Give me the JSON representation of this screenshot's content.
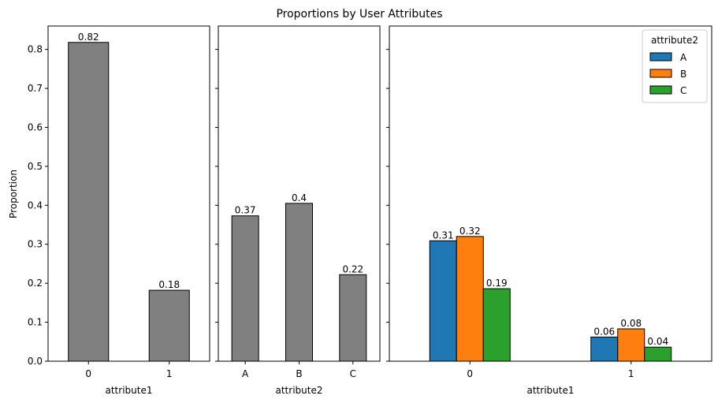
{
  "chart_data": {
    "type": "bar",
    "title": "Proportions by User Attributes",
    "ylabel": "Proportion",
    "ylim": [
      0,
      0.86
    ],
    "yticks": [
      0.0,
      0.1,
      0.2,
      0.3,
      0.4,
      0.5,
      0.6,
      0.7,
      0.8
    ],
    "ytick_labels": [
      "0.0",
      "0.1",
      "0.2",
      "0.3",
      "0.4",
      "0.5",
      "0.6",
      "0.7",
      "0.8"
    ],
    "grid": false,
    "shared_y": true,
    "bar_edge_color": "#000000",
    "subplots": [
      {
        "xlabel": "attribute1",
        "categories": [
          "0",
          "1"
        ],
        "values": [
          0.818,
          0.182
        ],
        "value_labels": [
          "0.82",
          "0.18"
        ],
        "color": "#808080"
      },
      {
        "xlabel": "attribute2",
        "categories": [
          "A",
          "B",
          "C"
        ],
        "values": [
          0.373,
          0.405,
          0.222
        ],
        "value_labels": [
          "0.37",
          "0.4",
          "0.22"
        ],
        "color": "#808080"
      },
      {
        "xlabel": "attribute1",
        "categories": [
          "0",
          "1"
        ],
        "legend": {
          "title": "attribute2",
          "placement": "top-right"
        },
        "series": [
          {
            "name": "A",
            "color": "#1f77b4",
            "values": [
              0.309,
              0.062
            ],
            "value_labels": [
              "0.31",
              "0.06"
            ]
          },
          {
            "name": "B",
            "color": "#ff7f0e",
            "values": [
              0.32,
              0.083
            ],
            "value_labels": [
              "0.32",
              "0.08"
            ]
          },
          {
            "name": "C",
            "color": "#2ca02c",
            "values": [
              0.186,
              0.036
            ],
            "value_labels": [
              "0.19",
              "0.04"
            ]
          }
        ]
      }
    ]
  }
}
